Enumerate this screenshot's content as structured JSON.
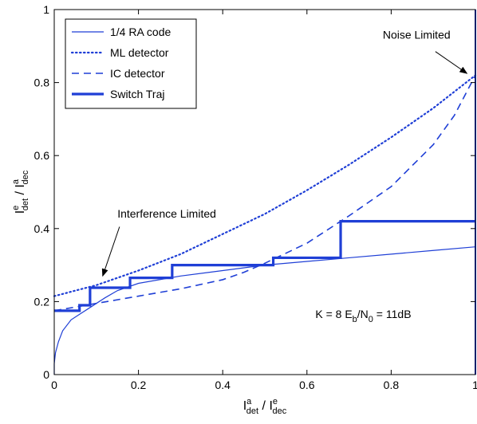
{
  "chart_data": {
    "type": "line",
    "xlabel": {
      "base": "I",
      "sup": "a",
      "sub": "det",
      "sep": " / ",
      "base2": "I",
      "sup2": "e",
      "sub2": "dec"
    },
    "ylabel": {
      "base": "I",
      "sup": "e",
      "sub": "det",
      "sep": " / ",
      "base2": "I",
      "sup2": "a",
      "sub2": "dec"
    },
    "xlim": [
      0,
      1
    ],
    "ylim": [
      0,
      1
    ],
    "xticks": [
      "0",
      "0.2",
      "0.4",
      "0.6",
      "0.8",
      "1"
    ],
    "xtick_values": [
      0,
      0.2,
      0.4,
      0.6,
      0.8,
      1
    ],
    "yticks": [
      "0",
      "0.2",
      "0.4",
      "0.6",
      "0.8",
      "1"
    ],
    "ytick_values": [
      0,
      0.2,
      0.4,
      0.6,
      0.8,
      1
    ],
    "grid": false,
    "legend_position": "top-left",
    "color": "#1f3fd6",
    "series": [
      {
        "name": "1/4 RA code",
        "style": "solid-thin",
        "x": [
          0,
          0,
          0.003,
          0.01,
          0.02,
          0.04,
          0.06,
          0.08,
          0.1,
          0.12,
          0.15,
          0.2,
          0.3,
          0.4,
          0.5,
          0.6,
          0.7,
          0.8,
          0.9,
          1.0,
          1.0
        ],
        "y": [
          0,
          0.03,
          0.06,
          0.09,
          0.12,
          0.15,
          0.165,
          0.18,
          0.195,
          0.21,
          0.23,
          0.25,
          0.27,
          0.285,
          0.3,
          0.31,
          0.32,
          0.33,
          0.34,
          0.35,
          0.35
        ]
      },
      {
        "name": "ML detector",
        "style": "dotted",
        "x": [
          0,
          0.1,
          0.2,
          0.3,
          0.4,
          0.5,
          0.6,
          0.7,
          0.8,
          0.9,
          1.0
        ],
        "y": [
          0.215,
          0.245,
          0.285,
          0.33,
          0.385,
          0.44,
          0.505,
          0.575,
          0.65,
          0.73,
          0.82
        ]
      },
      {
        "name": "IC detector",
        "style": "dashed",
        "x": [
          0,
          0.1,
          0.2,
          0.3,
          0.4,
          0.45,
          0.5,
          0.6,
          0.7,
          0.8,
          0.9,
          0.95,
          1.0
        ],
        "y": [
          0.175,
          0.195,
          0.215,
          0.235,
          0.26,
          0.28,
          0.305,
          0.36,
          0.435,
          0.515,
          0.63,
          0.71,
          0.82
        ]
      },
      {
        "name": "Switch Traj",
        "style": "solid-thick",
        "x": [
          0,
          0.06,
          0.06,
          0.085,
          0.085,
          0.18,
          0.18,
          0.28,
          0.28,
          0.52,
          0.52,
          0.68,
          0.68,
          1.0
        ],
        "y": [
          0.175,
          0.175,
          0.19,
          0.19,
          0.238,
          0.238,
          0.265,
          0.265,
          0.3,
          0.3,
          0.32,
          0.32,
          0.42,
          0.42
        ]
      }
    ],
    "right_edge_line": {
      "x": 1.0,
      "y": [
        0,
        1
      ]
    },
    "annotations": [
      {
        "text": "Noise Limited",
        "text_pos": [
          0.78,
          0.92
        ],
        "arrow_from": [
          0.905,
          0.885
        ],
        "arrow_to": [
          0.98,
          0.825
        ]
      },
      {
        "text": "Interference Limited",
        "text_pos": [
          0.15,
          0.43
        ],
        "arrow_from": [
          0.155,
          0.405
        ],
        "arrow_to": [
          0.115,
          0.27
        ]
      }
    ],
    "text_box": {
      "parts": [
        "K = 8 E",
        "b",
        "/N",
        "0",
        " = 11dB"
      ],
      "pos": [
        0.62,
        0.155
      ]
    }
  }
}
